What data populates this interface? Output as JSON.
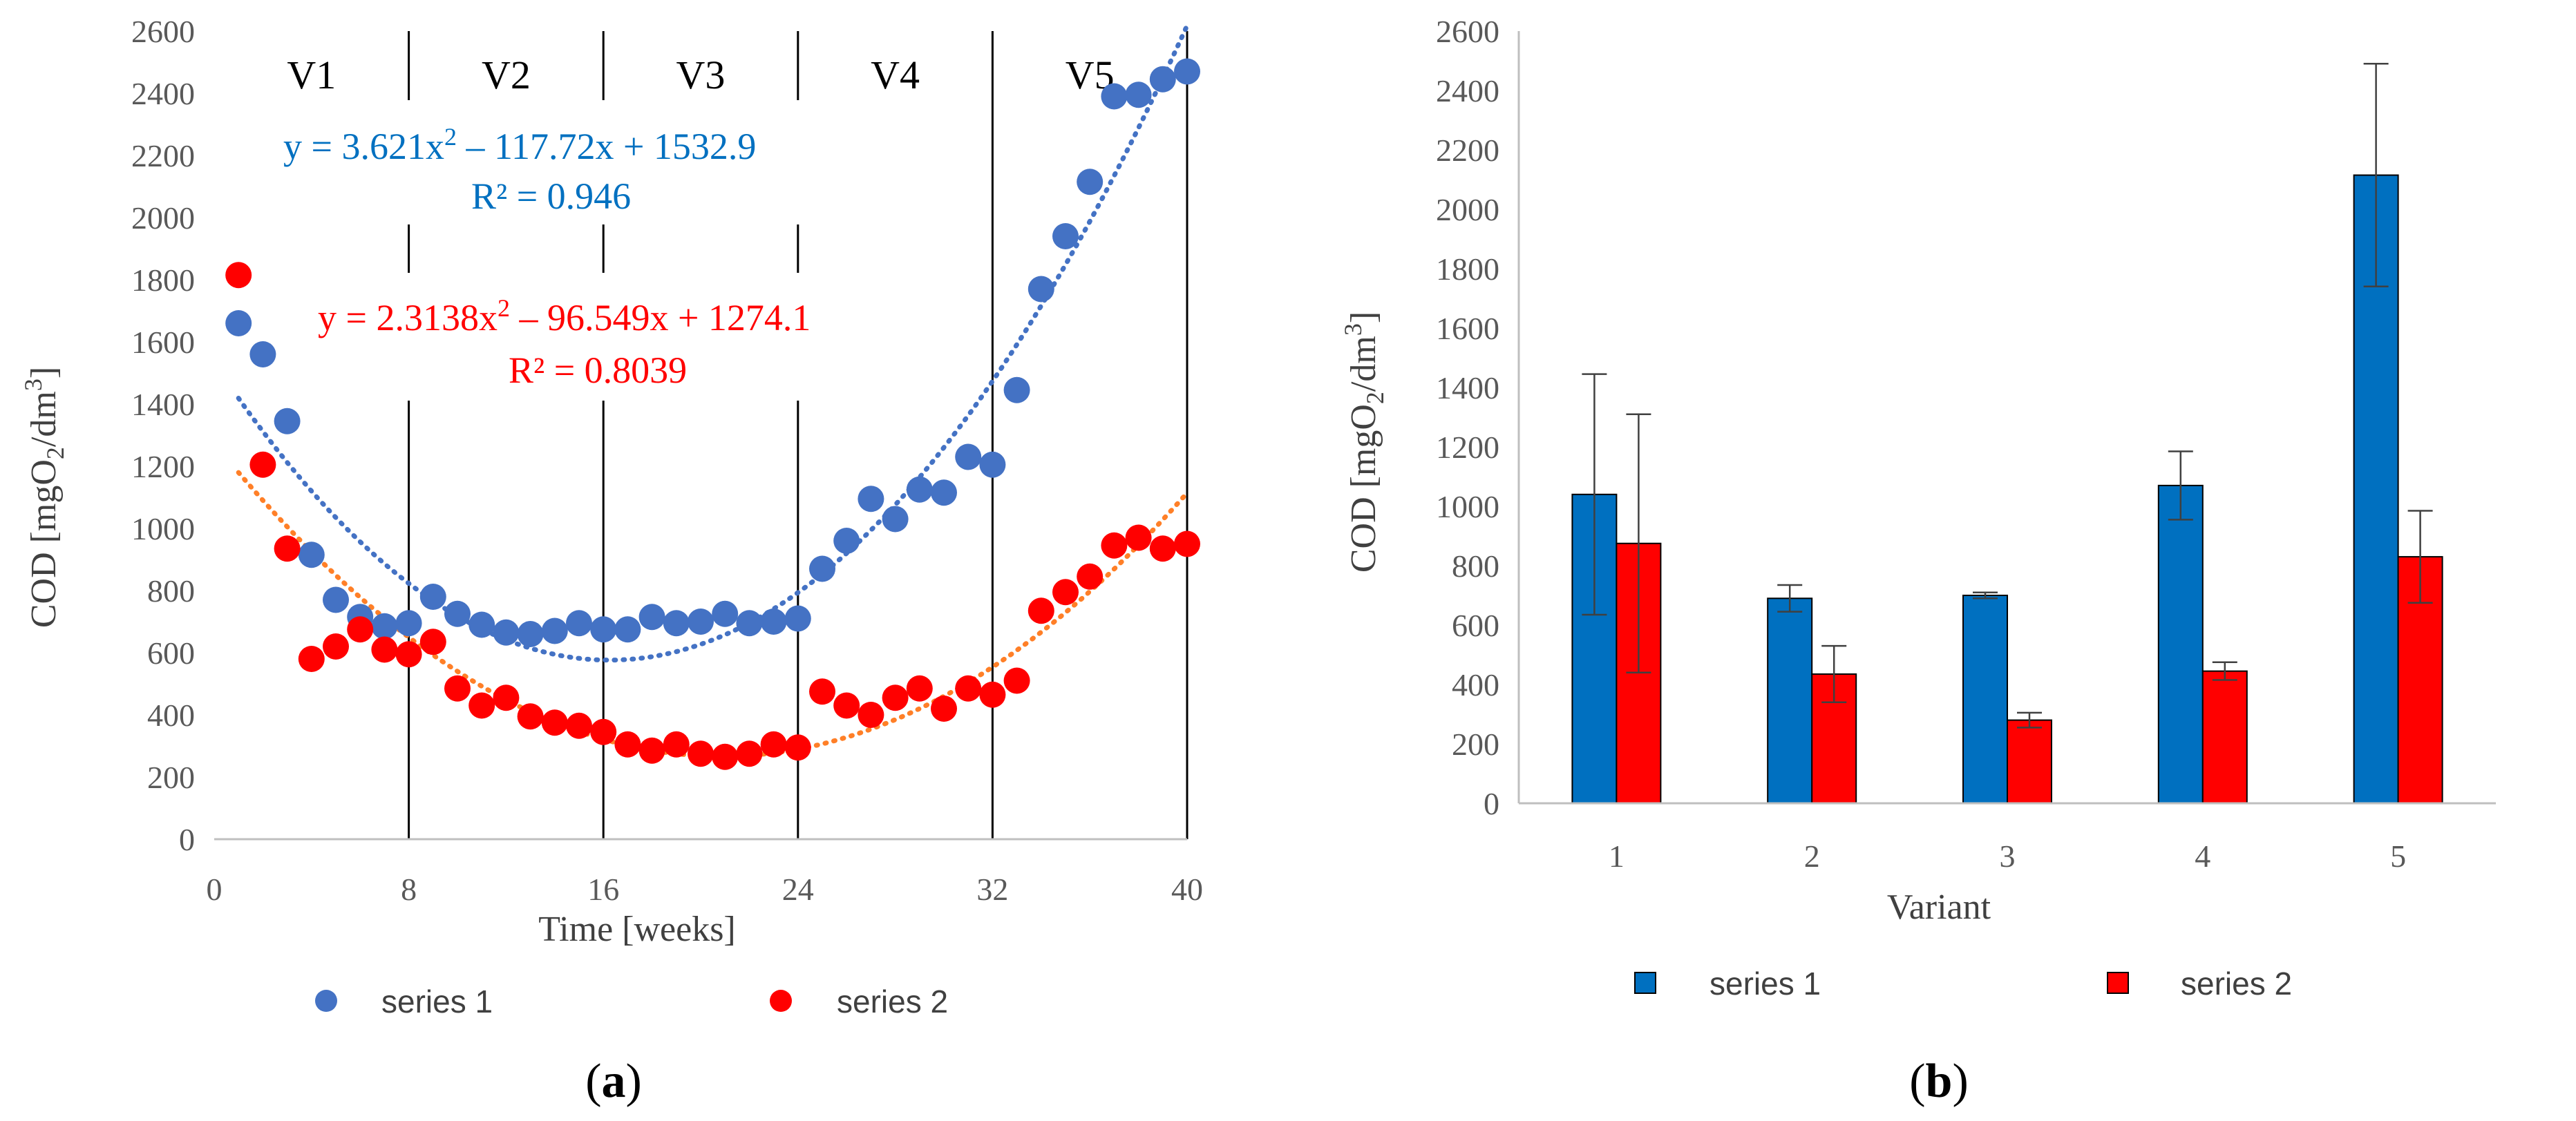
{
  "chart_data": [
    {
      "type": "scatter",
      "panel_label_prefix": "(",
      "panel_label_letter": "a",
      "panel_label_suffix": ")",
      "xlabel": "Time [weeks]",
      "ylabel": "COD [mgO",
      "ylabel_sub1": "2",
      "ylabel_mid": "/dm",
      "ylabel_sup": "3",
      "ylabel_end": "]",
      "xlim": [
        0,
        40
      ],
      "ylim": [
        0,
        2600
      ],
      "xticks": [
        0,
        8,
        16,
        24,
        32,
        40
      ],
      "yticks": [
        0,
        200,
        400,
        600,
        800,
        1000,
        1200,
        1400,
        1600,
        1800,
        2000,
        2200,
        2400,
        2600
      ],
      "grid": false,
      "period_labels": [
        "V1",
        "V2",
        "V3",
        "V4",
        "V5"
      ],
      "period_boundaries": [
        8,
        16,
        24,
        32,
        40
      ],
      "legend_position": "bottom",
      "colors": {
        "series1": "#4472C4",
        "series2": "#FF0000"
      },
      "series": [
        {
          "name": "series 1",
          "x": [
            1,
            2,
            3,
            4,
            5,
            6,
            7,
            8,
            9,
            10,
            11,
            12,
            13,
            14,
            15,
            16,
            17,
            18,
            19,
            20,
            21,
            22,
            23,
            24,
            25,
            26,
            27,
            28,
            29,
            30,
            31,
            32,
            33,
            34,
            35,
            36,
            37,
            38,
            39,
            40
          ],
          "y": [
            1660,
            1560,
            1345,
            915,
            770,
            715,
            685,
            695,
            780,
            725,
            690,
            665,
            660,
            670,
            695,
            675,
            675,
            715,
            695,
            700,
            725,
            695,
            700,
            710,
            870,
            960,
            1095,
            1030,
            1125,
            1115,
            1230,
            1205,
            1445,
            1770,
            1940,
            2115,
            2390,
            2395,
            2445,
            2470
          ],
          "trend": {
            "equation_prefix": "y = 3.621x",
            "equation_sup": "2",
            "equation_suffix": " – 117.72x + 1532.9",
            "r2": "R² = 0.946",
            "coefficients": [
              3.621,
              -117.72,
              1532.9
            ]
          }
        },
        {
          "name": "series 2",
          "x": [
            1,
            2,
            3,
            4,
            5,
            6,
            7,
            8,
            9,
            10,
            11,
            12,
            13,
            14,
            15,
            16,
            17,
            18,
            19,
            20,
            21,
            22,
            23,
            24,
            25,
            26,
            27,
            28,
            29,
            30,
            31,
            32,
            33,
            34,
            35,
            36,
            37,
            38,
            39,
            40
          ],
          "y": [
            1815,
            1205,
            935,
            580,
            620,
            675,
            610,
            595,
            635,
            485,
            430,
            455,
            395,
            375,
            365,
            345,
            305,
            285,
            305,
            275,
            265,
            275,
            305,
            295,
            475,
            430,
            400,
            455,
            485,
            420,
            485,
            465,
            510,
            735,
            795,
            845,
            945,
            970,
            935,
            950
          ],
          "trend": {
            "equation_prefix": "y = 2.3138x",
            "equation_sup": "2",
            "equation_suffix": " – 96.549x + 1274.1",
            "r2": "R² = 0.8039",
            "coefficients": [
              2.3138,
              -96.549,
              1274.1
            ]
          }
        }
      ]
    },
    {
      "type": "bar",
      "panel_label_prefix": "(",
      "panel_label_letter": "b",
      "panel_label_suffix": ")",
      "xlabel": "Variant",
      "ylabel": "COD [mgO",
      "ylabel_sub1": "2",
      "ylabel_mid": "/dm",
      "ylabel_sup": "3",
      "ylabel_end": "]",
      "ylim": [
        0,
        2600
      ],
      "yticks": [
        0,
        200,
        400,
        600,
        800,
        1000,
        1200,
        1400,
        1600,
        1800,
        2000,
        2200,
        2400,
        2600
      ],
      "grid": false,
      "legend_position": "bottom",
      "categories": [
        "1",
        "2",
        "3",
        "4",
        "5"
      ],
      "colors": {
        "series1": "#0070C0",
        "series2": "#FF0000"
      },
      "series": [
        {
          "name": "series 1",
          "values": [
            1040,
            690,
            700,
            1070,
            2115
          ],
          "error": [
            405,
            45,
            10,
            115,
            375
          ]
        },
        {
          "name": "series 2",
          "values": [
            875,
            435,
            280,
            445,
            830
          ],
          "error": [
            435,
            95,
            25,
            30,
            155
          ]
        }
      ]
    }
  ]
}
